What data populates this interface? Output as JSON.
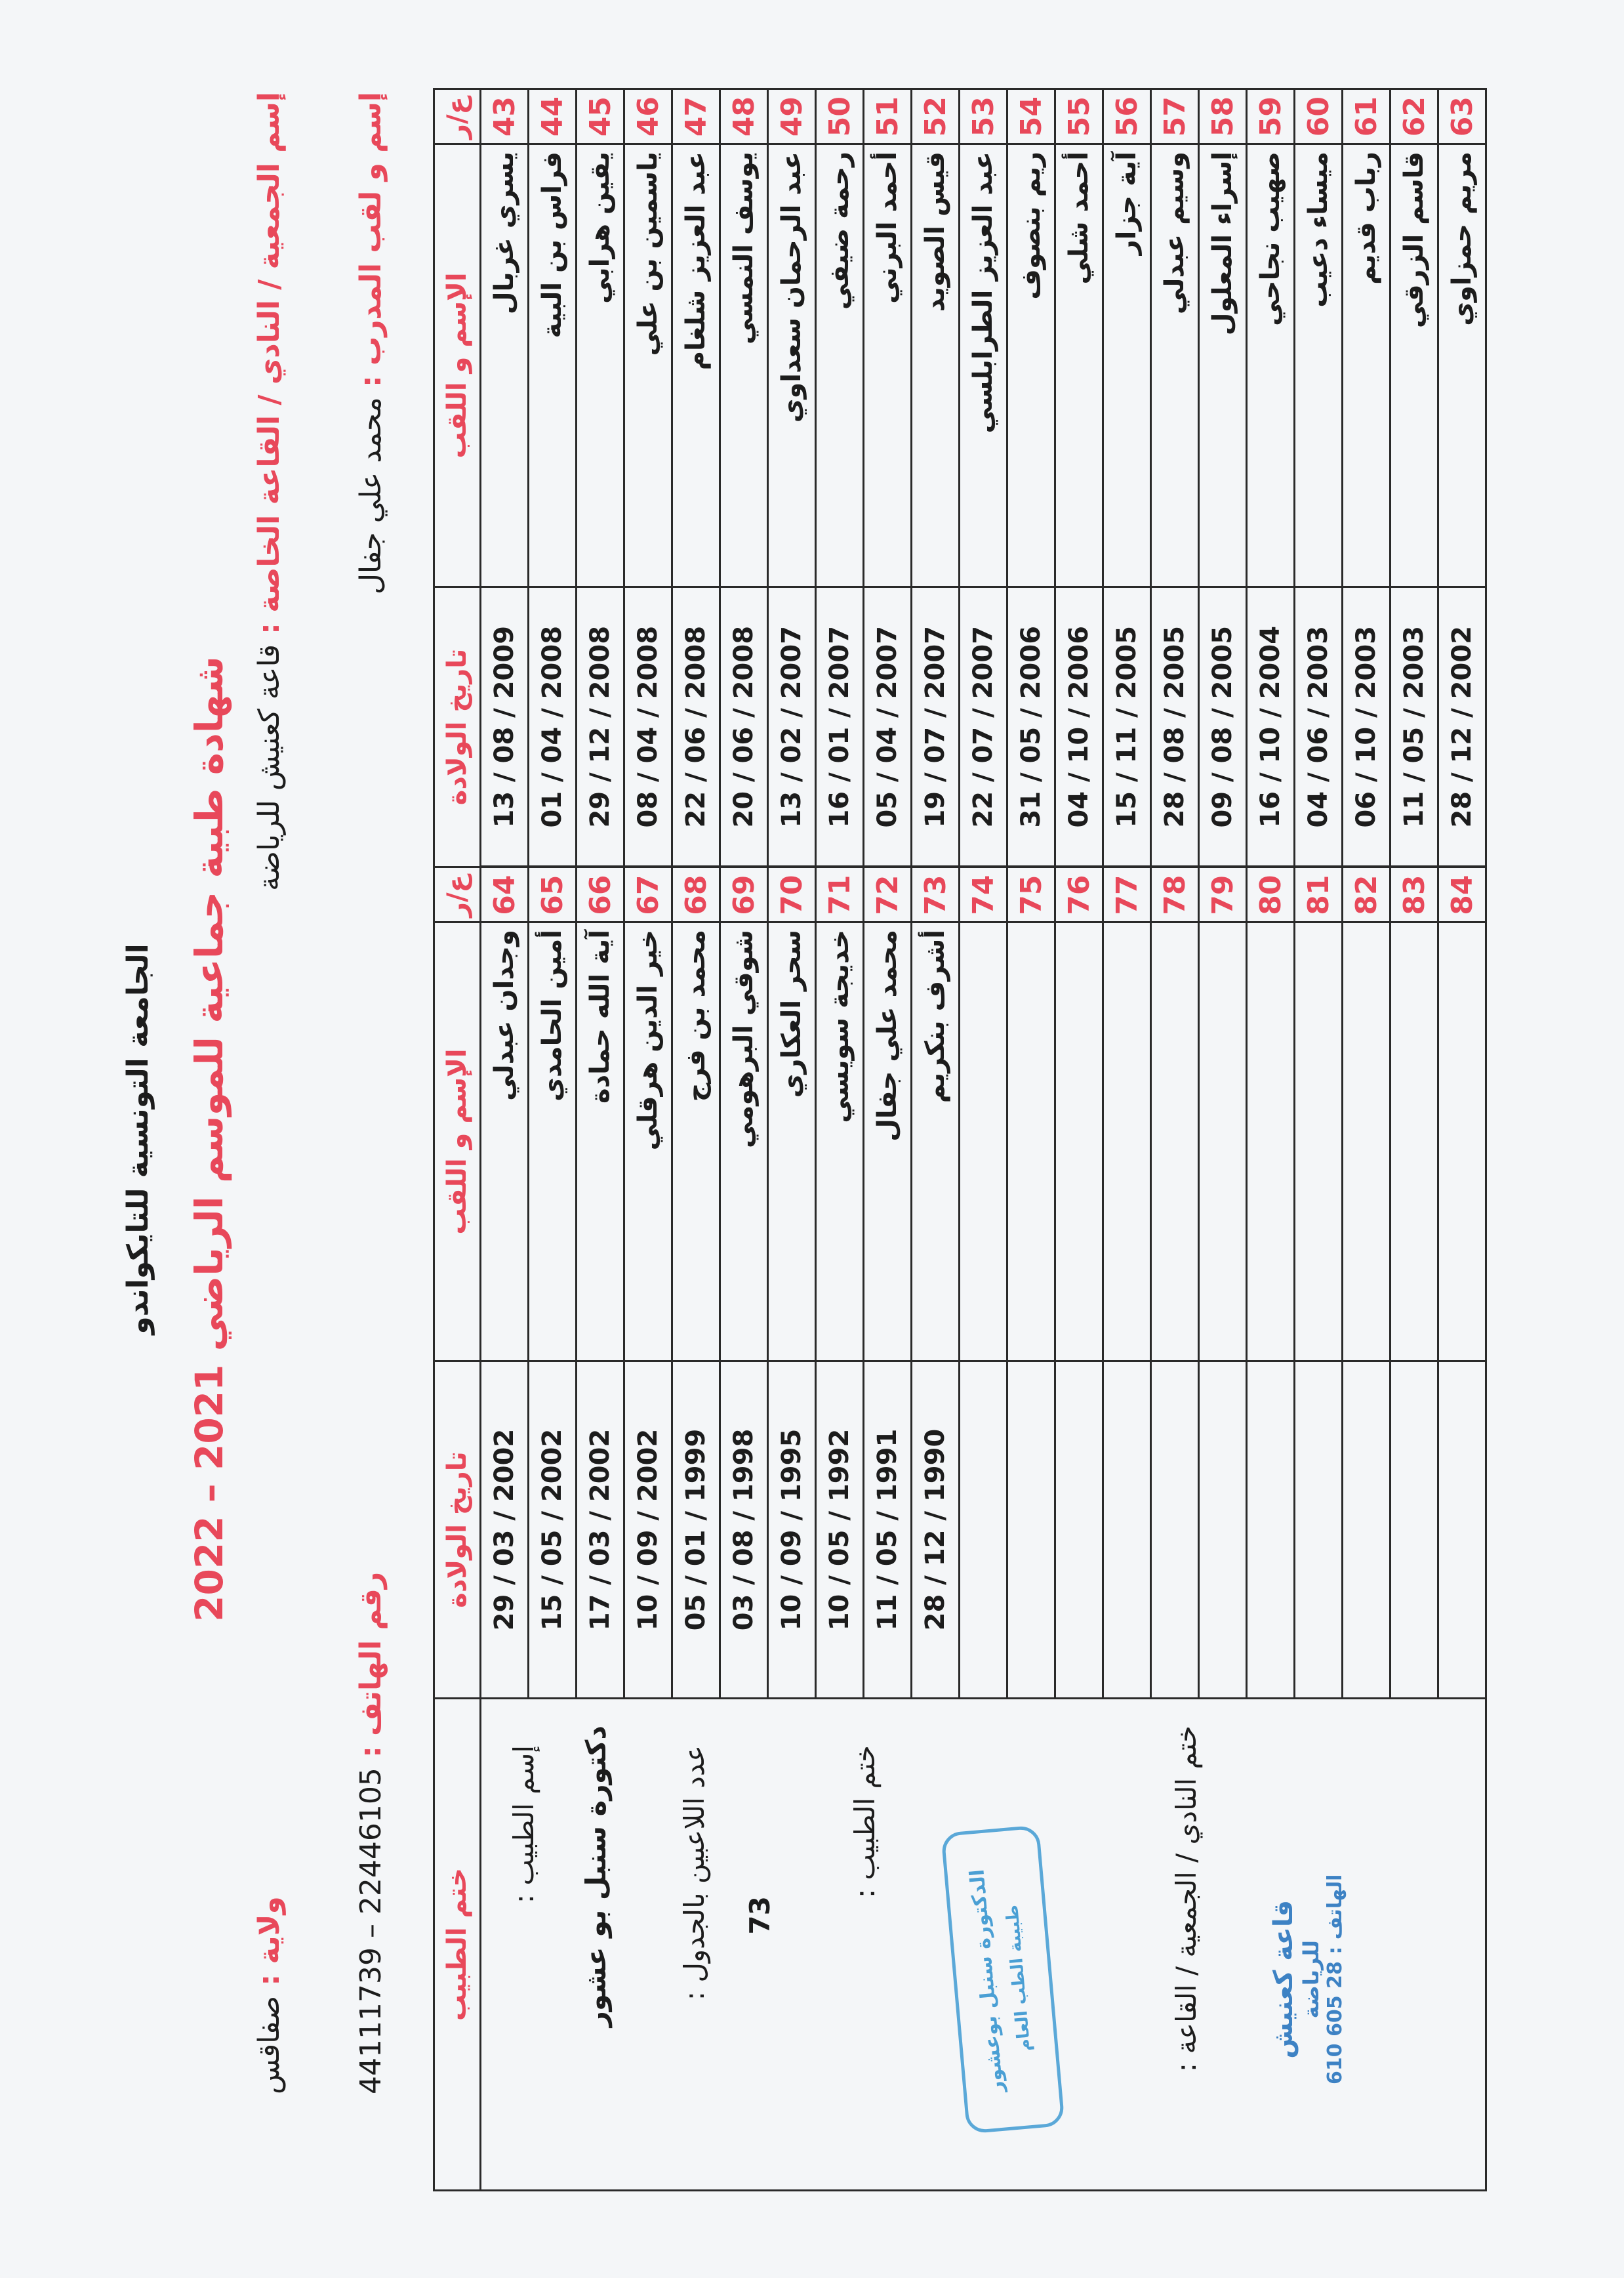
{
  "header": {
    "organization": "الجامعة التونسية للتايكواندو",
    "title": "شهادة طبية جماعية للموسم الرياضي 2021 – 2022"
  },
  "info": {
    "club_label": "إسم الجمعية / النادي / القاعة الخاصة :",
    "club_value": "قاعة كعنيش للرياضة",
    "coach_label": "إسم و لقب المدرب :",
    "coach_value": "محمد علي جفال",
    "state_label": "ولاية :",
    "state_value": "صفاقس",
    "phone_label": "رقم الهاتف :",
    "phone_value": "44111739 – 22446105"
  },
  "table": {
    "headers": {
      "num": "ع/ر",
      "name": "الإسم و اللقب",
      "date": "تاريخ الولادة",
      "doctor_stamp": "ختم الطبيب"
    },
    "left_group": [
      {
        "num": "43",
        "name": "يسري غربال",
        "date": "13 / 08 / 2009"
      },
      {
        "num": "44",
        "name": "فراس بن البية",
        "date": "01 / 04 / 2008"
      },
      {
        "num": "45",
        "name": "يقين هرابي",
        "date": "29 / 12 / 2008"
      },
      {
        "num": "46",
        "name": "ياسمين بن علي",
        "date": "08 / 04 / 2008"
      },
      {
        "num": "47",
        "name": "عبد العزيز شلغام",
        "date": "22 / 06 / 2008"
      },
      {
        "num": "48",
        "name": "يوسف النمسي",
        "date": "20 / 06 / 2008"
      },
      {
        "num": "49",
        "name": "عبد الرحمان سعداوي",
        "date": "13 / 02 / 2007"
      },
      {
        "num": "50",
        "name": "رحمة ضيفي",
        "date": "16 / 01 / 2007"
      },
      {
        "num": "51",
        "name": "أحمد البرني",
        "date": "05 / 04 / 2007"
      },
      {
        "num": "52",
        "name": "قيس الصويد",
        "date": "19 / 07 / 2007"
      },
      {
        "num": "53",
        "name": "عبد العزيز الطرابلسي",
        "date": "22 / 07 / 2007"
      },
      {
        "num": "54",
        "name": "ريم بنصوف",
        "date": "31 / 05 / 2006"
      },
      {
        "num": "55",
        "name": "أحمد شلي",
        "date": "04 / 10 / 2006"
      },
      {
        "num": "56",
        "name": "آية جزار",
        "date": "15 / 11 / 2005"
      },
      {
        "num": "57",
        "name": "وسيم عبدلي",
        "date": "28 / 08 / 2005"
      },
      {
        "num": "58",
        "name": "إسراء المعلول",
        "date": "09 / 08 / 2005"
      },
      {
        "num": "59",
        "name": "صهيب نجاحي",
        "date": "16 / 10 / 2004"
      },
      {
        "num": "60",
        "name": "ميساء دعيب",
        "date": "04 / 06 / 2003"
      },
      {
        "num": "61",
        "name": "رباب قديم",
        "date": "06 / 10 / 2003"
      },
      {
        "num": "62",
        "name": "قاسم الزرقي",
        "date": "11 / 05 / 2003"
      },
      {
        "num": "63",
        "name": "مريم حمزاوي",
        "date": "28 / 12 / 2002"
      }
    ],
    "right_group": [
      {
        "num": "64",
        "name": "وجدان عبدلي",
        "date": "29 / 03 / 2002"
      },
      {
        "num": "65",
        "name": "أمين الحامدي",
        "date": "15 / 05 / 2002"
      },
      {
        "num": "66",
        "name": "آية الله حمادة",
        "date": "17 / 03 / 2002"
      },
      {
        "num": "67",
        "name": "خير الدين هرقلي",
        "date": "10 / 09 / 2002"
      },
      {
        "num": "68",
        "name": "محمد بن فرج",
        "date": "05 / 01 / 1999"
      },
      {
        "num": "69",
        "name": "شوقي البرهومي",
        "date": "03 / 08 / 1998"
      },
      {
        "num": "70",
        "name": "سحر العكاري",
        "date": "10 / 09 / 1995"
      },
      {
        "num": "71",
        "name": "خديجة سويسي",
        "date": "10 / 05 / 1992"
      },
      {
        "num": "72",
        "name": "محمد علي جفال",
        "date": "11 / 05 / 1991"
      },
      {
        "num": "73",
        "name": "أشرف بنكريم",
        "date": "28 / 12 / 1990"
      },
      {
        "num": "74",
        "name": "",
        "date": ""
      },
      {
        "num": "75",
        "name": "",
        "date": ""
      },
      {
        "num": "76",
        "name": "",
        "date": ""
      },
      {
        "num": "77",
        "name": "",
        "date": ""
      },
      {
        "num": "78",
        "name": "",
        "date": ""
      },
      {
        "num": "79",
        "name": "",
        "date": ""
      },
      {
        "num": "80",
        "name": "",
        "date": ""
      },
      {
        "num": "81",
        "name": "",
        "date": ""
      },
      {
        "num": "82",
        "name": "",
        "date": ""
      },
      {
        "num": "83",
        "name": "",
        "date": ""
      },
      {
        "num": "84",
        "name": "",
        "date": ""
      }
    ]
  },
  "doctor": {
    "name_label": "إسم الطبيب :",
    "name_value": "دكتورة سنبل بو عشور",
    "count_label": "عدد اللاعبين بالجدول :",
    "count_value": "73",
    "stamp_label": "ختم الطبيب :",
    "stamp_text_1": "الدكتورة سنبل بوعشور",
    "stamp_text_2": "طبيبة الطب العام",
    "stamp_color": "#5aa8d8"
  },
  "club": {
    "stamp_label": "ختم النادي / الجمعية / القاعة :",
    "stamp_name": "قاعة كعنيش",
    "stamp_sub": "للرياضة",
    "stamp_phone": "الهاتف : 28 605 610"
  },
  "colors": {
    "accent_red": "#e8485a",
    "stamp_blue": "#3d82c4"
  }
}
